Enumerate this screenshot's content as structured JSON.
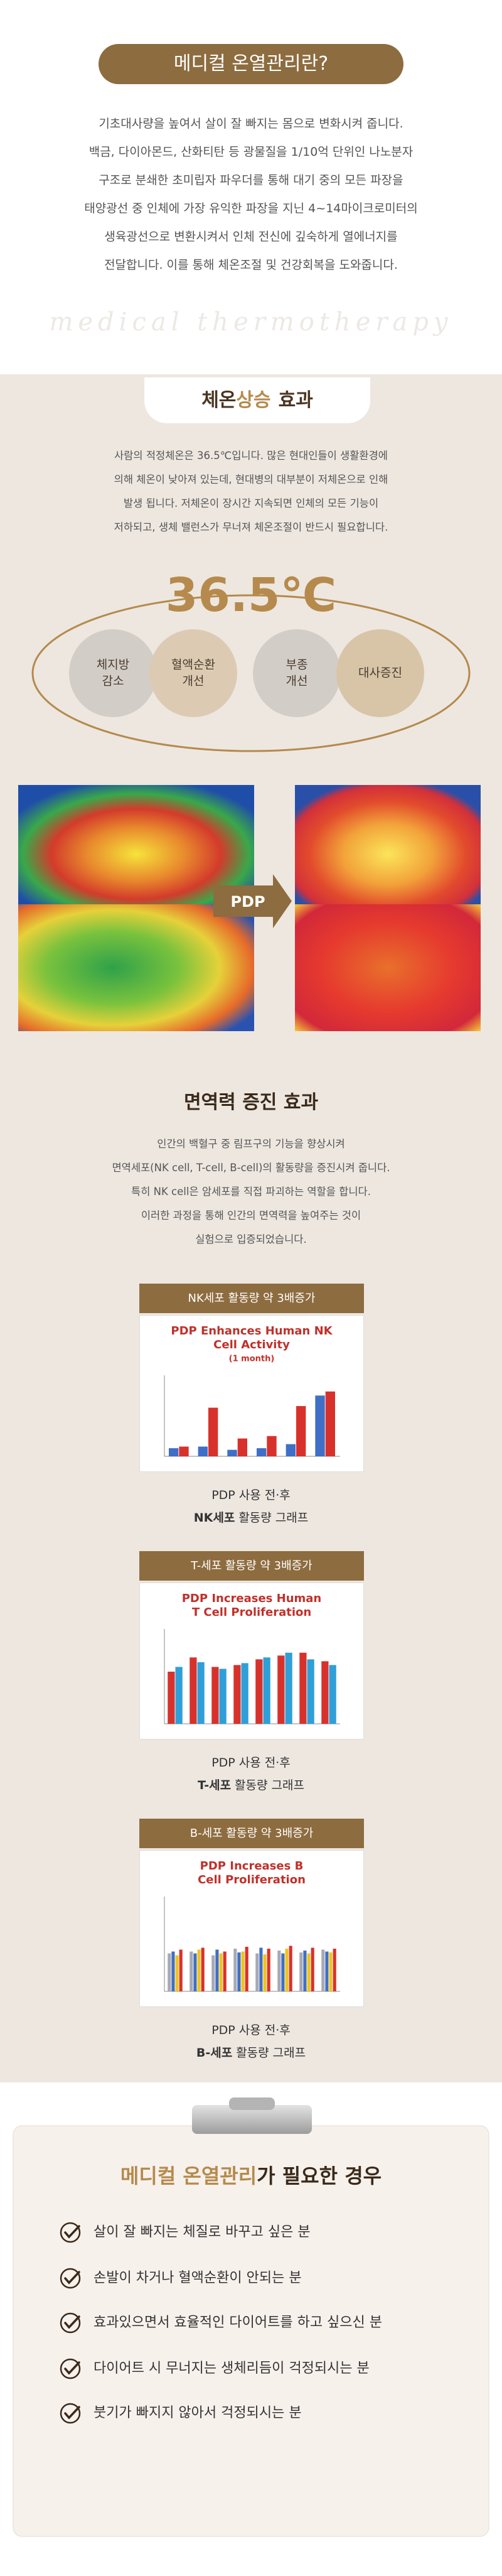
{
  "intro": {
    "title": "메디컬 온열관리란?",
    "lines": [
      "기초대사량을 높여서 살이 잘 빠지는 몸으로 변화시켜 줍니다.",
      "백금, 다이아몬드, 산화티탄 등 광물질을 1/10억 단위인 나노분자",
      "구조로 분쇄한 초미립자 파우더를 통해 대기 중의 모든 파장을",
      "태양광선 중 인체에 가장 유익한 파장을 지닌 4~14마이크로미터의",
      "생육광선으로 변환시켜서 인체 전신에 깊숙하게 열에너지를",
      "전달합니다. 이를 통해 체온조절 및 건강회복을 도와줍니다."
    ],
    "watermark": "medical thermotherapy"
  },
  "temperature": {
    "title_parts": [
      "체온",
      "상승",
      "효과"
    ],
    "lines": [
      "사람의 적정체온은 36.5℃입니다. 많은 현대인들이 생활환경에",
      "의해 체온이 낮아져 있는데, 현대병의 대부분이 저체온으로 인해",
      "발생 됩니다. 저체온이 장시간 지속되면 인체의 모든 기능이",
      "저하되고, 생체 밸런스가 무너져 체온조절이 반드시 필요합니다."
    ],
    "big_value": "36.5℃",
    "benefits": [
      [
        "체지방",
        "감소"
      ],
      [
        "혈액순환",
        "개선"
      ],
      [
        "부종",
        "개선"
      ],
      [
        "대사증진"
      ]
    ],
    "arrow_label": "PDP"
  },
  "immunity": {
    "title": "면역력 증진 효과",
    "lines": [
      "인간의 백혈구 중 림프구의 기능을 향상시켜",
      "면역세포(NK cell, T-cell, B-cell)의 활동량을 증진시켜 줍니다.",
      "특히 NK cell은 암세포를 직접 파괴하는 역할을 합니다.",
      "이러한 과정을 통해 인간의 면역력을 높여주는 것이",
      "실험으로 입증되었습니다."
    ],
    "charts": [
      {
        "header": "NK세포 활동량 약 3배증가",
        "chart_title": [
          "PDP Enhances Human NK",
          "Cell Activity",
          "(1 month)"
        ],
        "type": "bar",
        "ylim": [
          0,
          100
        ],
        "series": [
          {
            "color": "#3f6fc6",
            "values": [
              10,
              12,
              8,
              10,
              15,
              75
            ]
          },
          {
            "color": "#d8312c",
            "values": [
              12,
              60,
              22,
              25,
              62,
              80
            ]
          }
        ],
        "caption": "PDP 사용 전·후",
        "caption_bold": "NK세포",
        "caption_rest": "활동량 그래프"
      },
      {
        "header": "T-세포 활동량 약 3배증가",
        "chart_title": [
          "PDP Increases Human",
          "T Cell Proliferation"
        ],
        "type": "bar",
        "ylim": [
          0,
          100
        ],
        "series": [
          {
            "color": "#d8312c",
            "values": [
              55,
              70,
              60,
              62,
              68,
              72,
              75,
              66
            ]
          },
          {
            "color": "#2f9fd8",
            "values": [
              60,
              65,
              58,
              64,
              70,
              75,
              68,
              62
            ]
          }
        ],
        "caption": "PDP 사용 전·후",
        "caption_bold": "T-세포",
        "caption_rest": "활동량 그래프"
      },
      {
        "header": "B-세포 활동량 약 3배증가",
        "chart_title": [
          "PDP Increases B",
          "Cell Proliferation"
        ],
        "type": "bar",
        "ylim": [
          0,
          100
        ],
        "series": [
          {
            "color": "#a9a9b3",
            "values": [
              40,
              42,
              38,
              45,
              40,
              43,
              41,
              44
            ]
          },
          {
            "color": "#3f6fc6",
            "values": [
              42,
              40,
              44,
              41,
              46,
              40,
              43,
              42
            ]
          },
          {
            "color": "#f2c318",
            "values": [
              38,
              44,
              40,
              42,
              39,
              45,
              40,
              41
            ]
          },
          {
            "color": "#d8312c",
            "values": [
              44,
              46,
              42,
              47,
              45,
              48,
              46,
              45
            ]
          }
        ],
        "caption": "PDP 사용 전·후",
        "caption_bold": "B-세포",
        "caption_rest": "활동량 그래프"
      }
    ]
  },
  "cases": {
    "title_highlight": "메디컬 온열관리",
    "title_rest": "가 필요한 경우",
    "items": [
      "살이 잘 빠지는 체질로 바꾸고 싶은 분",
      "손발이 차거나 혈액순환이 안되는 분",
      "효과있으면서 효율적인 다이어트를 하고 싶으신 분",
      "다이어트 시 무너지는 생체리듬이 걱정되시는 분",
      "붓기가 빠지지 않아서 걱정되시는 분"
    ]
  }
}
